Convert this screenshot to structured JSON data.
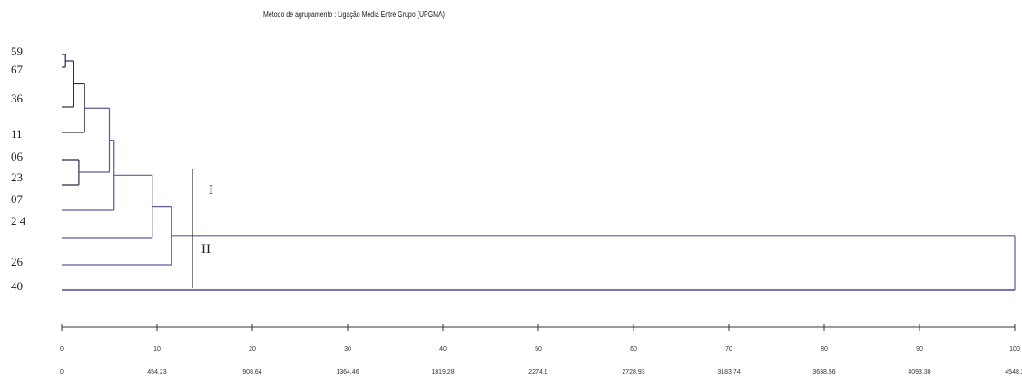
{
  "chart_data": {
    "type": "dendrogram",
    "title": "Método de agrupamento : Ligação Média Entre Grupo (UPGMA)",
    "leaves": [
      "59",
      "67",
      "36",
      "11",
      "06",
      "23",
      "07",
      "2 4",
      "26",
      "40"
    ],
    "merges": [
      {
        "a": "59",
        "b": "67",
        "height": 0.4
      },
      {
        "a": "59+67",
        "b": "36",
        "height": 1.2
      },
      {
        "a": "06",
        "b": "23",
        "height": 1.8
      },
      {
        "a": "59+67+36",
        "b": "11",
        "height": 2.4
      },
      {
        "a": "(59,67,36,11)",
        "b": "(06,23)",
        "height": 5.0
      },
      {
        "a": "(59..23)",
        "b": "07",
        "height": 5.5
      },
      {
        "a": "(59..07)",
        "b": "2 4",
        "height": 9.5
      },
      {
        "a": "(59..24)",
        "b": "26",
        "height": 11.5
      },
      {
        "a": "(59..26)",
        "b": "40",
        "height": 100
      }
    ],
    "cut_line": 13.7,
    "clusters": [
      "I",
      "II"
    ],
    "xlim": [
      0,
      100
    ],
    "x_ticks_top": [
      "0",
      "10",
      "20",
      "30",
      "40",
      "50",
      "60",
      "70",
      "80",
      "90",
      "100"
    ],
    "x_ticks_bottom": [
      "0",
      "454.23",
      "908.64",
      "1364.46",
      "1819.28",
      "2274.1",
      "2728.93",
      "3183.74",
      "3638.56",
      "4093.38",
      "4548.2"
    ],
    "grid": false,
    "legend": "none",
    "colors": {
      "line": "#5a5a9a",
      "cut": "#1a1a1a",
      "text": "#222222"
    }
  }
}
